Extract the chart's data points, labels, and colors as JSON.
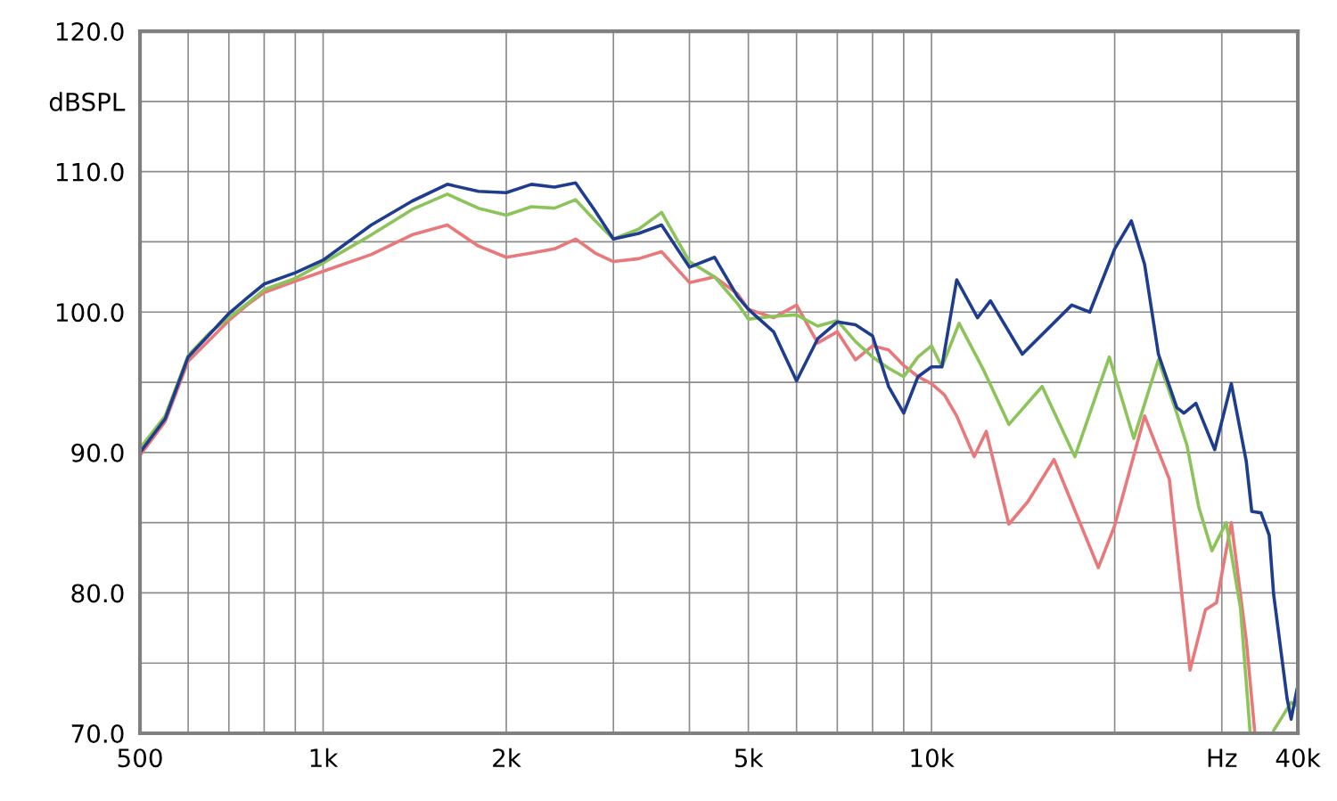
{
  "chart_data": {
    "type": "line",
    "log": "x",
    "grid": true,
    "marker": "none",
    "line_style": "solid",
    "xlim": [
      500,
      40000
    ],
    "xticks": [
      500,
      {
        "value": 600,
        "label": null
      },
      {
        "value": 700,
        "label": null
      },
      {
        "value": 800,
        "label": null
      },
      {
        "value": 900,
        "label": null
      },
      {
        "value": 1000,
        "label": "1k"
      },
      {
        "value": 2000,
        "label": "2k"
      },
      {
        "value": 3000,
        "label": null
      },
      {
        "value": 4000,
        "label": null
      },
      {
        "value": 5000,
        "label": "5k"
      },
      {
        "value": 6000,
        "label": null
      },
      {
        "value": 7000,
        "label": null
      },
      {
        "value": 8000,
        "label": null
      },
      {
        "value": 9000,
        "label": null
      },
      {
        "value": 10000,
        "label": "10k"
      },
      {
        "value": 20000,
        "label": null
      },
      {
        "value": 30000,
        "label": "Hz"
      },
      {
        "value": 40000,
        "label": "40k"
      }
    ],
    "ylim": [
      70,
      120
    ],
    "yticks": [
      {
        "value": 70,
        "label": "70.0"
      },
      {
        "value": 75,
        "label": null
      },
      {
        "value": 80,
        "label": "80.0"
      },
      {
        "value": 85,
        "label": null
      },
      {
        "value": 90,
        "label": "90.0"
      },
      {
        "value": 95,
        "label": null
      },
      {
        "value": 100,
        "label": "100.0"
      },
      {
        "value": 105,
        "label": null
      },
      {
        "value": 110,
        "label": "110.0"
      },
      {
        "value": 115,
        "label": "dBSPL"
      },
      {
        "value": 120,
        "label": "120.0"
      }
    ],
    "series": [
      {
        "color": "#e8787a",
        "x": [
          500,
          550,
          600,
          650,
          700,
          750,
          800,
          900,
          1000,
          1200,
          1400,
          1600,
          1800,
          2000,
          2200,
          2400,
          2600,
          2800,
          3000,
          3300,
          3600,
          4000,
          4400,
          4800,
          5000,
          5500,
          6000,
          6500,
          7000,
          7500,
          8000,
          8500,
          9000,
          9500,
          10000,
          10500,
          11000,
          11750,
          12300,
          13400,
          14400,
          15900,
          18800,
          20000,
          22400,
          24600,
          26600,
          28200,
          29400,
          31100,
          32900,
          34000
        ],
        "values": [
          89.8,
          92.2,
          96.5,
          98,
          99.4,
          100.5,
          101.4,
          102.2,
          102.9,
          104.1,
          105.5,
          106.2,
          104.7,
          103.9,
          104.2,
          104.5,
          105.2,
          104.2,
          103.6,
          103.8,
          104.3,
          102.1,
          102.5,
          101.3,
          100.2,
          99.6,
          100.5,
          97.8,
          98.6,
          96.6,
          97.6,
          97.3,
          96.2,
          95.4,
          94.9,
          94.1,
          92.6,
          89.7,
          91.5,
          84.9,
          86.5,
          89.5,
          81.8,
          84.8,
          92.6,
          88.1,
          74.5,
          78.8,
          79.3,
          85,
          76.7,
          70
        ]
      },
      {
        "color": "#8cc35a",
        "x": [
          500,
          550,
          600,
          650,
          700,
          750,
          800,
          900,
          1000,
          1200,
          1400,
          1600,
          1800,
          2000,
          2200,
          2400,
          2600,
          2800,
          3000,
          3300,
          3600,
          4000,
          4400,
          4800,
          5000,
          5500,
          6000,
          6500,
          7000,
          7500,
          8000,
          8500,
          9000,
          9500,
          10000,
          10400,
          11100,
          12200,
          13400,
          15200,
          17200,
          19600,
          21500,
          23600,
          25300,
          26300,
          27500,
          28900,
          30500,
          32200,
          33400,
          35000,
          36500,
          39000,
          39700
        ],
        "values": [
          90.3,
          92.6,
          96.9,
          98.5,
          99.6,
          100.6,
          101.6,
          102.4,
          103.5,
          105.5,
          107.3,
          108.4,
          107.4,
          106.9,
          107.5,
          107.4,
          108,
          106.5,
          105.2,
          105.9,
          107.1,
          103.6,
          102.5,
          100.6,
          99.5,
          99.7,
          99.8,
          99,
          99.4,
          97.9,
          96.8,
          96,
          95.4,
          96.8,
          97.6,
          96.1,
          99.2,
          95.8,
          92,
          94.7,
          89.7,
          96.8,
          91,
          96.6,
          92.8,
          90.5,
          86.1,
          83,
          85,
          78.9,
          70,
          null,
          70.2,
          72.2,
          72
        ]
      },
      {
        "color": "#1f3d8f",
        "x": [
          500,
          550,
          600,
          650,
          700,
          750,
          800,
          900,
          1000,
          1200,
          1400,
          1600,
          1800,
          2000,
          2200,
          2400,
          2600,
          2800,
          3000,
          3300,
          3600,
          4000,
          4400,
          4800,
          5000,
          5500,
          6000,
          6500,
          7000,
          7500,
          8000,
          8500,
          9000,
          9500,
          10000,
          10400,
          11000,
          11900,
          12500,
          14100,
          17000,
          18200,
          20000,
          21300,
          22400,
          23600,
          25300,
          26000,
          27200,
          29200,
          31100,
          32900,
          33600,
          34800,
          35900,
          36500,
          38400,
          39000,
          39900
        ],
        "values": [
          90,
          92.4,
          96.8,
          98.4,
          99.9,
          101,
          102,
          102.8,
          103.7,
          106.2,
          107.9,
          109.1,
          108.6,
          108.5,
          109.1,
          108.9,
          109.2,
          107.2,
          105.2,
          105.6,
          106.2,
          103.2,
          103.9,
          101.1,
          100.2,
          98.6,
          95.1,
          98.1,
          99.3,
          99.1,
          98.3,
          94.7,
          92.8,
          95.4,
          96.1,
          96.1,
          102.3,
          99.6,
          100.8,
          97,
          100.5,
          100,
          104.5,
          106.5,
          103.4,
          97,
          93.2,
          92.8,
          93.5,
          90.2,
          94.9,
          89.4,
          85.8,
          85.7,
          84.1,
          79.9,
          72.5,
          71,
          73.2
        ]
      }
    ]
  }
}
